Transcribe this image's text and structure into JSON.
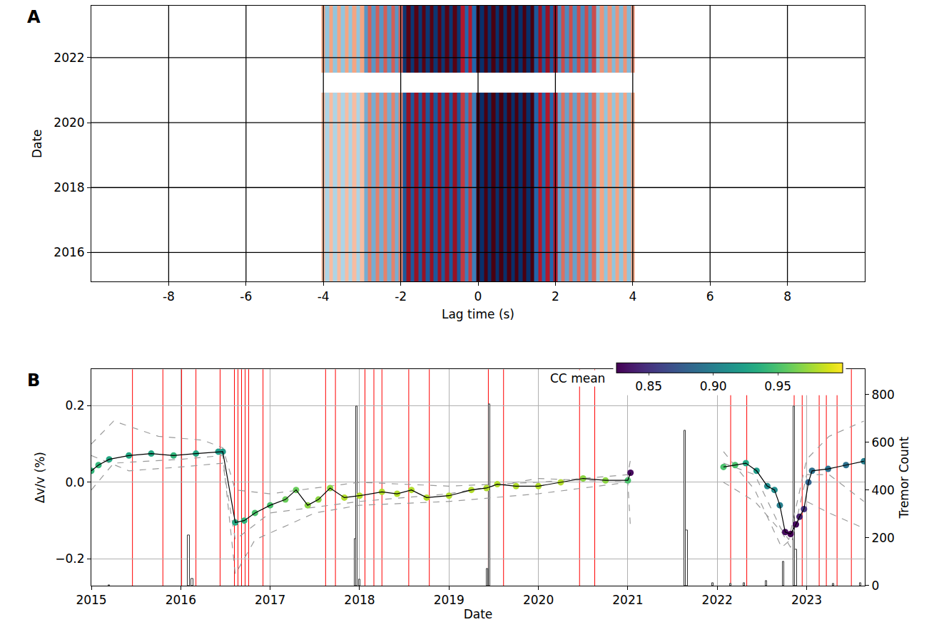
{
  "chart_data": [
    {
      "type": "heatmap",
      "label": "A",
      "xlabel": "Lag time (s)",
      "ylabel": "Date",
      "xlim": [
        -10,
        10
      ],
      "xticks": [
        -8,
        -6,
        -4,
        -2,
        0,
        2,
        4,
        6,
        8
      ],
      "ylim": [
        2015.1,
        2023.6
      ],
      "yticks": [
        2016,
        2018,
        2020,
        2022
      ],
      "grid": true,
      "zlim": [
        -1,
        1
      ],
      "x": [
        -4,
        -3.9,
        -3.8,
        -3.7,
        -3.6,
        -3.5,
        -3.4,
        -3.3,
        -3.2,
        -3.1,
        -3,
        -2.9,
        -2.8,
        -2.7,
        -2.6,
        -2.5,
        -2.4,
        -2.3,
        -2.2,
        -2.1,
        -2,
        -1.9,
        -1.8,
        -1.7,
        -1.6,
        -1.5,
        -1.4,
        -1.3,
        -1.2,
        -1.1,
        -1,
        -0.9,
        -0.8,
        -0.7,
        -0.6,
        -0.5,
        -0.4,
        -0.3,
        -0.2,
        -0.1,
        0,
        0.1,
        0.2,
        0.3,
        0.4,
        0.5,
        0.6,
        0.7,
        0.8,
        0.9,
        1,
        1.1,
        1.2,
        1.3,
        1.4,
        1.5,
        1.6,
        1.7,
        1.8,
        1.9,
        2,
        2.1,
        2.2,
        2.3,
        2.4,
        2.5,
        2.6,
        2.7,
        2.8,
        2.9,
        3,
        3.1,
        3.2,
        3.3,
        3.4,
        3.5,
        3.6,
        3.7,
        3.8,
        3.9,
        4
      ],
      "y_edges": [
        2015.1,
        2020.92,
        2021.53,
        2023.6
      ],
      "z": [
        [
          0.15,
          -0.15,
          0.15,
          -0.15,
          0.15,
          -0.15,
          0.15,
          -0.15,
          0.15,
          -0.15,
          0.15,
          -0.3,
          0.3,
          -0.3,
          0.3,
          -0.3,
          0.3,
          -0.3,
          0.3,
          -0.3,
          0.3,
          -0.7,
          0.7,
          -0.7,
          0.7,
          -0.7,
          0.7,
          -0.7,
          0.7,
          -0.7,
          0.7,
          -0.7,
          0.7,
          -0.7,
          0.7,
          -0.7,
          0.5,
          -0.5,
          0.5,
          -0.5,
          1,
          -1,
          1,
          -1,
          1,
          -1,
          1,
          -1,
          1,
          -1,
          1,
          -1,
          1,
          -1,
          1,
          -0.6,
          0.6,
          -0.6,
          0.6,
          -0.6,
          0.6,
          -0.35,
          0.35,
          -0.35,
          0.35,
          -0.35,
          0.35,
          -0.35,
          0.35,
          -0.35,
          0.35,
          -0.2,
          0.2,
          -0.2,
          0.2,
          -0.2,
          0.2,
          -0.2,
          0.2,
          -0.2,
          0.2
        ],
        [
          null,
          null,
          null,
          null,
          null,
          null,
          null,
          null,
          null,
          null,
          null,
          null,
          null,
          null,
          null,
          null,
          null,
          null,
          null,
          null,
          null,
          null,
          null,
          null,
          null,
          null,
          null,
          null,
          null,
          null,
          null,
          null,
          null,
          null,
          null,
          null,
          null,
          null,
          null,
          null,
          null,
          null,
          null,
          null,
          null,
          null,
          null,
          null,
          null,
          null,
          null,
          null,
          null,
          null,
          null,
          null,
          null,
          null,
          null,
          null,
          null,
          null,
          null,
          null,
          null,
          null,
          null,
          null,
          null,
          null,
          null,
          null,
          null,
          null,
          null,
          null,
          null,
          null,
          null,
          null,
          null
        ],
        [
          0.2,
          -0.2,
          0.2,
          -0.2,
          0.2,
          -0.2,
          0.2,
          -0.2,
          0.2,
          -0.2,
          0.2,
          -0.4,
          0.4,
          -0.4,
          0.4,
          -0.4,
          0.4,
          -0.4,
          0.4,
          -0.4,
          0.4,
          -0.95,
          0.95,
          -0.95,
          0.95,
          -0.95,
          0.95,
          -0.95,
          0.95,
          -0.95,
          0.95,
          -0.95,
          0.95,
          -0.95,
          0.95,
          -0.95,
          0.6,
          -0.6,
          0.6,
          -0.6,
          1,
          -1,
          1,
          -1,
          1,
          -1,
          1,
          -1,
          1,
          -1,
          1,
          -1,
          1,
          -1,
          1,
          -0.7,
          0.7,
          -0.7,
          0.7,
          -0.7,
          0.7,
          -0.45,
          0.45,
          -0.45,
          0.45,
          -0.45,
          0.45,
          -0.45,
          0.45,
          -0.45,
          0.45,
          -0.25,
          0.25,
          -0.25,
          0.25,
          -0.25,
          0.25,
          -0.25,
          0.25,
          -0.25,
          0.25
        ]
      ]
    },
    {
      "type": "line",
      "label": "B",
      "xlabel": "Date",
      "ylabel": "Δv/v (%)",
      "y2label": "Tremor Count",
      "xlim": [
        2015,
        2023.65
      ],
      "xticks": [
        2015,
        2016,
        2017,
        2018,
        2019,
        2020,
        2021,
        2022,
        2023
      ],
      "ylim": [
        -0.27,
        0.295
      ],
      "yticks": [
        {
          "value": -0.2,
          "label": "−0.2"
        },
        {
          "value": 0,
          "label": "0.0"
        },
        {
          "value": 0.2,
          "label": "0.2"
        }
      ],
      "y2lim": [
        0,
        905
      ],
      "y2ticks": [
        0,
        200,
        400,
        600,
        800
      ],
      "grid": true,
      "cc_colorbar": {
        "title": "CC mean",
        "lim": [
          0.825,
          1.0
        ],
        "ticks": [
          0.85,
          {
            "value": 0.9,
            "label": "0.90"
          },
          0.95
        ]
      },
      "events": {
        "color": "#ff0000",
        "x": [
          2015.46,
          2015.8,
          2016.01,
          2016.17,
          2016.44,
          2016.6,
          2016.64,
          2016.68,
          2016.72,
          2016.76,
          2016.92,
          2017.62,
          2017.73,
          2018.06,
          2018.16,
          2018.25,
          2018.55,
          2018.78,
          2019.44,
          2019.61,
          2020.46,
          2020.63,
          2022.15,
          2022.33,
          2022.86,
          2022.95,
          2023.0,
          2023.14,
          2023.22,
          2023.34,
          2023.5
        ]
      },
      "series": [
        {
          "type": "bar",
          "axis": "y2",
          "color": "#ffffff",
          "x": [
            2015.2,
            2016.09,
            2016.13,
            2017.95,
            2017.97,
            2018.0,
            2019.43,
            2019.45,
            2021.64,
            2021.66,
            2021.95,
            2022.15,
            2022.3,
            2022.55,
            2022.74,
            2022.86,
            2022.88,
            2023.3,
            2023.6
          ],
          "values": [
            3,
            210,
            30,
            195,
            750,
            25,
            70,
            760,
            650,
            230,
            10,
            8,
            12,
            20,
            100,
            750,
            150,
            8,
            10
          ]
        },
        {
          "type": "line",
          "line_style": "dashed",
          "color": "#9a9a9a",
          "x": [
            2015.0,
            2015.25,
            2015.75,
            2016.25,
            2016.47,
            2016.61,
            2017.0,
            2018.0,
            2019.0,
            2020.0,
            2021.0,
            2021.03,
            2021.5,
            2022.07,
            2022.42,
            2022.71,
            2022.8,
            2023.0,
            2023.25,
            2023.64
          ],
          "values": [
            0.1,
            0.16,
            0.12,
            0.11,
            0.09,
            -0.02,
            -0.03,
            0.0,
            -0.01,
            0.0,
            0.02,
            0.06,
            null,
            0.05,
            0.02,
            -0.12,
            -0.15,
            0.06,
            0.12,
            0.16
          ]
        },
        {
          "type": "line",
          "line_style": "dashed",
          "color": "#9a9a9a",
          "x": [
            2015.0,
            2015.25,
            2016.0,
            2016.47,
            2016.61,
            2016.83,
            2017.5,
            2018.0,
            2019.0,
            2020.0,
            2021.0,
            2021.03,
            2021.5,
            2022.07,
            2022.42,
            2022.72,
            2022.82,
            2023.0,
            2023.25,
            2023.64
          ],
          "values": [
            -0.02,
            0.05,
            0.06,
            0.07,
            -0.24,
            -0.15,
            -0.08,
            -0.06,
            -0.05,
            -0.03,
            0.0,
            -0.12,
            null,
            0.08,
            -0.02,
            -0.17,
            -0.15,
            -0.05,
            -0.08,
            -0.12
          ]
        },
        {
          "type": "line",
          "line_style": "dashed",
          "color": "#9a9a9a",
          "x": [
            2015.0,
            2015.42,
            2016.0,
            2016.47,
            2016.61,
            2017.0,
            2018.0,
            2019.0,
            2020.0,
            2021.0,
            2021.03,
            2021.5,
            2022.07,
            2022.42,
            2022.72,
            2022.82,
            2023.0,
            2023.25,
            2023.64
          ],
          "values": [
            0.07,
            0.03,
            0.04,
            0.05,
            -0.15,
            -0.08,
            -0.05,
            -0.03,
            0.01,
            0.0,
            0.0,
            null,
            0.0,
            -0.05,
            -0.13,
            -0.17,
            0.02,
            0.02,
            -0.05
          ]
        },
        {
          "type": "line",
          "color": "#000000",
          "marker": "circle",
          "x": [
            2015.0,
            2015.08,
            2015.2,
            2015.42,
            2015.67,
            2015.92,
            2016.17,
            2016.42,
            2016.47,
            2016.61,
            2016.71,
            2016.83,
            2017.0,
            2017.17,
            2017.29,
            2017.42,
            2017.54,
            2017.67,
            2017.83,
            2018.0,
            2018.25,
            2018.42,
            2018.58,
            2018.75,
            2019.0,
            2019.25,
            2019.42,
            2019.54,
            2019.75,
            2020.0,
            2020.25,
            2020.5,
            2020.75,
            2021.0,
            2021.03,
            2021.5,
            2022.07,
            2022.2,
            2022.32,
            2022.44,
            2022.56,
            2022.64,
            2022.7,
            2022.76,
            2022.82,
            2022.88,
            2022.92,
            2022.97,
            2023.02,
            2023.06,
            2023.24,
            2023.44,
            2023.64
          ],
          "values": [
            0.03,
            0.045,
            0.06,
            0.07,
            0.075,
            0.07,
            0.075,
            0.08,
            0.08,
            -0.105,
            -0.1,
            -0.08,
            -0.06,
            -0.045,
            -0.02,
            -0.06,
            -0.045,
            -0.015,
            -0.04,
            -0.035,
            -0.025,
            -0.03,
            -0.02,
            -0.04,
            -0.035,
            -0.02,
            -0.015,
            -0.005,
            -0.01,
            -0.01,
            0.0,
            0.01,
            0.005,
            0.005,
            0.025,
            null,
            0.04,
            0.045,
            0.05,
            0.03,
            -0.01,
            -0.02,
            -0.06,
            -0.13,
            -0.135,
            -0.11,
            -0.09,
            -0.07,
            0.0,
            0.03,
            0.035,
            0.045,
            0.055
          ],
          "cc_mean": [
            0.94,
            0.94,
            0.93,
            0.93,
            0.93,
            0.94,
            0.93,
            0.92,
            0.92,
            0.93,
            0.94,
            0.95,
            0.95,
            0.96,
            0.96,
            0.97,
            0.97,
            0.97,
            0.98,
            0.98,
            0.98,
            0.98,
            0.98,
            0.98,
            0.98,
            0.98,
            0.98,
            0.98,
            0.98,
            0.98,
            0.98,
            0.97,
            0.97,
            0.95,
            0.83,
            null,
            0.95,
            0.95,
            0.93,
            0.92,
            0.91,
            0.91,
            0.9,
            0.83,
            0.82,
            0.83,
            0.84,
            0.85,
            0.88,
            0.89,
            0.89,
            0.89,
            0.9
          ]
        }
      ]
    }
  ]
}
